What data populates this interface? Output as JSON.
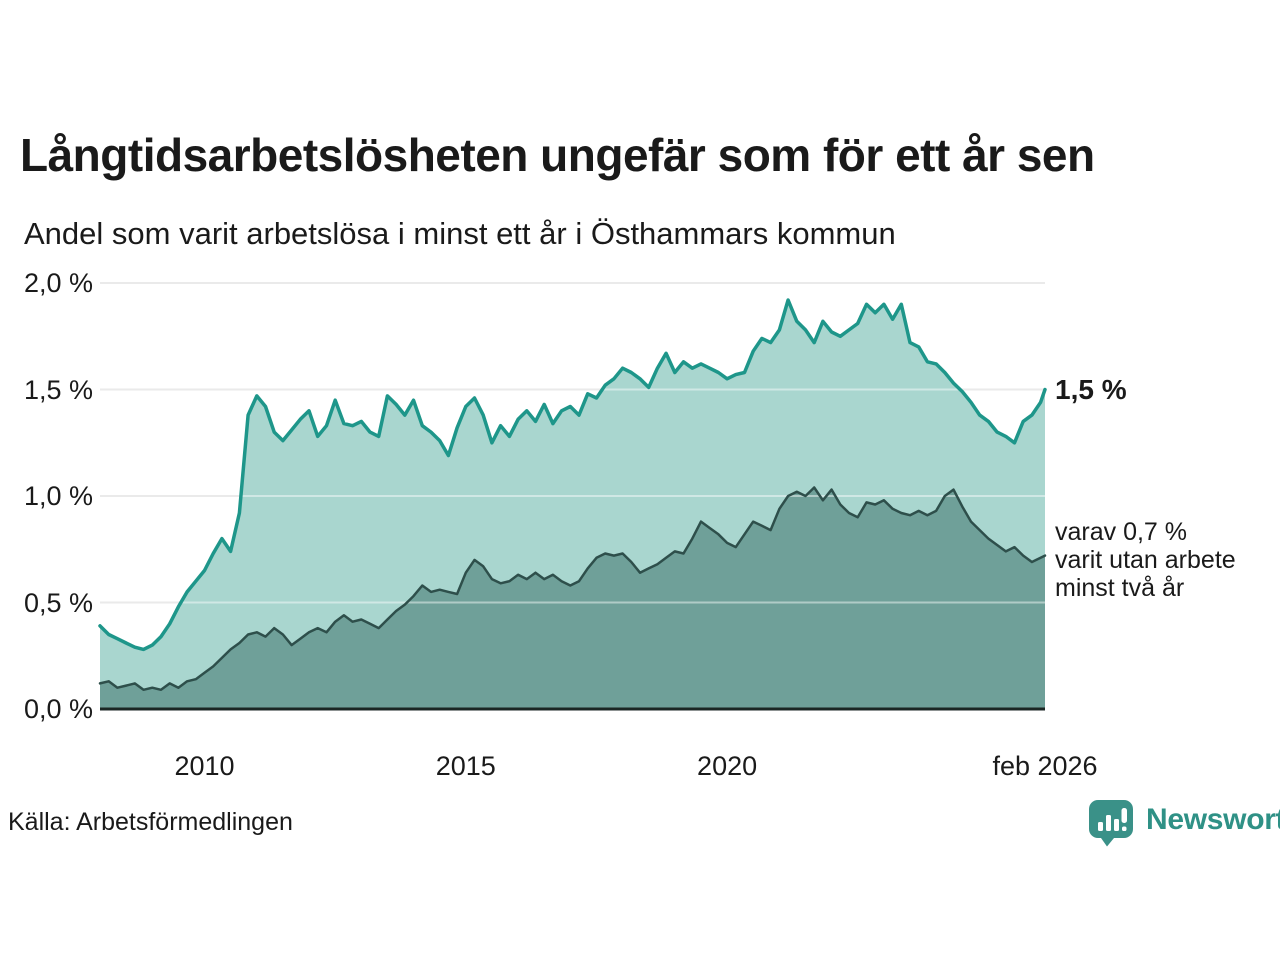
{
  "header": {
    "title": "Långtidsarbetslösheten ungefär som för ett år sen",
    "subtitle": "Andel som varit arbetslösa i minst ett år i Östhammars kommun"
  },
  "annotations": {
    "end_value_label": "1,5 %",
    "secondary_label_lines": [
      "varav 0,7 %",
      "varit utan arbete",
      "minst två år"
    ]
  },
  "footer": {
    "source": "Källa: Arbetsförmedlingen",
    "brand_name": "Newsworthy",
    "brand_icon": "bar-chart-speech-bubble-icon"
  },
  "colors": {
    "background": "#ffffff",
    "text": "#1a1a1a",
    "grid": "#d9d9d9",
    "grid_over_fill": "rgba(255,255,255,0.45)",
    "baseline": "#1b2624",
    "accent_teal": "#1e968a",
    "fill_light": "#a9d6cf",
    "fill_dark": "#6fa099",
    "stroke_dark": "#2e4f4b",
    "brand_teal": "#2f9186",
    "brand_icon_teal": "#3a9188"
  },
  "chart_data": {
    "type": "area",
    "title": "Långtidsarbetslösheten ungefär som för ett år sen",
    "subtitle": "Andel som varit arbetslösa i minst ett år i Östhammars kommun",
    "unit": "%",
    "x_start": "2008-01",
    "x_end": "2026-02",
    "x_step_months": 2,
    "total_months": 217,
    "ylim": [
      0,
      2.0
    ],
    "grid": true,
    "legend_position": "right-annotations",
    "y_ticks": [
      {
        "label": "2,0 %",
        "value": 2.0
      },
      {
        "label": "1,5 %",
        "value": 1.5
      },
      {
        "label": "1,0 %",
        "value": 1.0
      },
      {
        "label": "0,5 %",
        "value": 0.5
      },
      {
        "label": "0,0 %",
        "value": 0.0
      }
    ],
    "x_ticks": [
      {
        "label": "2010",
        "month": 24
      },
      {
        "label": "2015",
        "month": 84
      },
      {
        "label": "2020",
        "month": 144
      },
      {
        "label": "feb 2026",
        "month": 217
      }
    ],
    "series": [
      {
        "name": "Andel arbetslösa minst ett år",
        "end_label": "1,5 %",
        "end_value": 1.5,
        "fill": "#a9d6cf",
        "stroke": "#1e968a",
        "stroke_width": 3.5,
        "values": [
          0.39,
          0.35,
          0.33,
          0.31,
          0.29,
          0.28,
          0.3,
          0.34,
          0.4,
          0.48,
          0.55,
          0.6,
          0.65,
          0.73,
          0.8,
          0.74,
          0.92,
          1.38,
          1.47,
          1.42,
          1.3,
          1.26,
          1.31,
          1.36,
          1.4,
          1.28,
          1.33,
          1.45,
          1.34,
          1.33,
          1.35,
          1.3,
          1.28,
          1.47,
          1.43,
          1.38,
          1.45,
          1.33,
          1.3,
          1.26,
          1.19,
          1.32,
          1.42,
          1.46,
          1.38,
          1.25,
          1.33,
          1.28,
          1.36,
          1.4,
          1.35,
          1.43,
          1.34,
          1.4,
          1.42,
          1.38,
          1.48,
          1.46,
          1.52,
          1.55,
          1.6,
          1.58,
          1.55,
          1.51,
          1.6,
          1.67,
          1.58,
          1.63,
          1.6,
          1.62,
          1.6,
          1.58,
          1.55,
          1.57,
          1.58,
          1.68,
          1.74,
          1.72,
          1.78,
          1.92,
          1.82,
          1.78,
          1.72,
          1.82,
          1.77,
          1.75,
          1.78,
          1.81,
          1.9,
          1.86,
          1.9,
          1.83,
          1.9,
          1.72,
          1.7,
          1.63,
          1.62,
          1.58,
          1.53,
          1.49,
          1.44,
          1.38,
          1.35,
          1.3,
          1.28,
          1.25,
          1.35,
          1.38,
          1.44,
          1.5
        ]
      },
      {
        "name": "varav utan arbete minst två år",
        "end_label": "varav 0,7 % varit utan arbete minst två år",
        "end_value": 0.7,
        "fill": "#6fa099",
        "stroke": "#2e4f4b",
        "stroke_width": 2.5,
        "values": [
          0.12,
          0.13,
          0.1,
          0.11,
          0.12,
          0.09,
          0.1,
          0.09,
          0.12,
          0.1,
          0.13,
          0.14,
          0.17,
          0.2,
          0.24,
          0.28,
          0.31,
          0.35,
          0.36,
          0.34,
          0.38,
          0.35,
          0.3,
          0.33,
          0.36,
          0.38,
          0.36,
          0.41,
          0.44,
          0.41,
          0.42,
          0.4,
          0.38,
          0.42,
          0.46,
          0.49,
          0.53,
          0.58,
          0.55,
          0.56,
          0.55,
          0.54,
          0.64,
          0.7,
          0.67,
          0.61,
          0.59,
          0.6,
          0.63,
          0.61,
          0.64,
          0.61,
          0.63,
          0.6,
          0.58,
          0.6,
          0.66,
          0.71,
          0.73,
          0.72,
          0.73,
          0.69,
          0.64,
          0.66,
          0.68,
          0.71,
          0.74,
          0.73,
          0.8,
          0.88,
          0.85,
          0.82,
          0.78,
          0.76,
          0.82,
          0.88,
          0.86,
          0.84,
          0.94,
          1.0,
          1.02,
          1.0,
          1.04,
          0.98,
          1.03,
          0.96,
          0.92,
          0.9,
          0.97,
          0.96,
          0.98,
          0.94,
          0.92,
          0.91,
          0.93,
          0.91,
          0.93,
          1.0,
          1.03,
          0.95,
          0.88,
          0.84,
          0.8,
          0.77,
          0.74,
          0.76,
          0.72,
          0.69,
          0.71,
          0.72
        ]
      }
    ]
  }
}
